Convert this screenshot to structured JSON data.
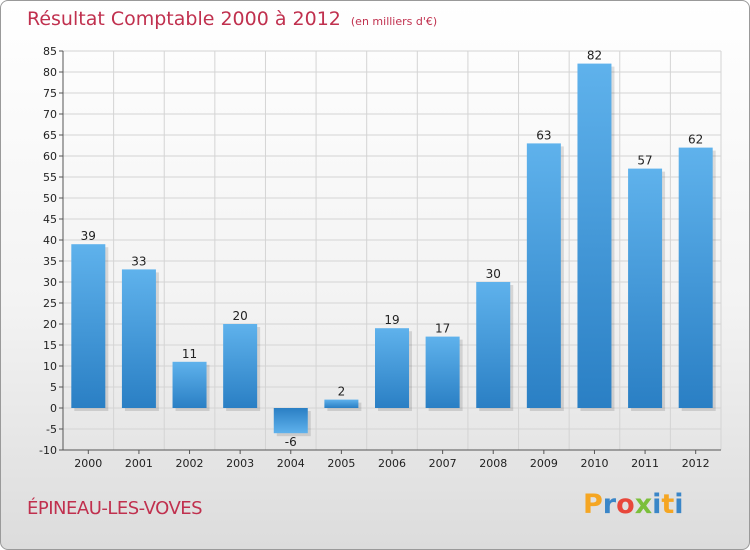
{
  "header": {
    "title": "Résultat Comptable 2000 à 2012",
    "unit": "(en milliers d'€)"
  },
  "footer": {
    "commune": "ÉPINEAU-LES-VOVES",
    "logo_letters": [
      "P",
      "r",
      "o",
      "x",
      "i",
      "t",
      "i"
    ],
    "logo_colors": [
      "#f5a623",
      "#3a86c8",
      "#e8473b",
      "#7bbf3a",
      "#3a86c8",
      "#f5a623",
      "#3a86c8"
    ]
  },
  "chart_data": {
    "type": "bar",
    "title": "Résultat Comptable 2000 à 2012",
    "subtitle": "(en milliers d'€)",
    "categories": [
      "2000",
      "2001",
      "2002",
      "2003",
      "2004",
      "2005",
      "2006",
      "2007",
      "2008",
      "2009",
      "2010",
      "2011",
      "2012"
    ],
    "values": [
      39,
      33,
      11,
      20,
      -6,
      2,
      19,
      17,
      30,
      63,
      82,
      57,
      62
    ],
    "ylim": [
      -10,
      85
    ],
    "yticks": [
      -10,
      -5,
      0,
      5,
      10,
      15,
      20,
      25,
      30,
      35,
      40,
      45,
      50,
      55,
      60,
      65,
      70,
      75,
      80,
      85
    ],
    "grid": true,
    "bar_color": "#3a95d8",
    "grid_color": "#d4d4d4"
  }
}
